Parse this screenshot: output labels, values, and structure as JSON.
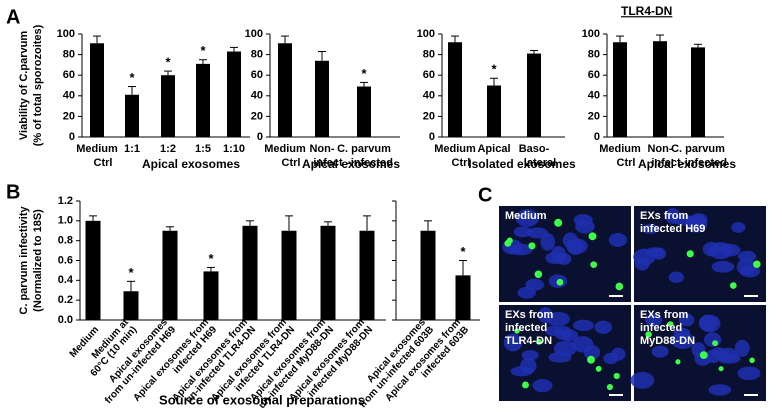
{
  "panel_letters": [
    "A",
    "B",
    "C"
  ],
  "chart_data": [
    {
      "type": "bar",
      "ylabel": [
        "Viability of C.parvum",
        "(% of total sporozoites)"
      ],
      "categories": [
        [
          "Medium",
          "Ctrl"
        ],
        [
          "1:1"
        ],
        [
          "1:2"
        ],
        [
          "1:5"
        ],
        [
          "1:10"
        ]
      ],
      "values": [
        91,
        41,
        60,
        71,
        83
      ],
      "errors": [
        7,
        8,
        4,
        4,
        4
      ],
      "markers": [
        null,
        "*",
        "*",
        "*",
        null
      ],
      "group_label": "Apical exosomes",
      "color": "#000000",
      "ylim": [
        0,
        100
      ],
      "yticks": [
        0,
        20,
        40,
        60,
        80,
        100
      ]
    },
    {
      "type": "bar",
      "categories": [
        [
          "Medium",
          "Ctrl"
        ],
        [
          "Non-",
          "infect"
        ],
        [
          "C. parvum",
          "-infected"
        ]
      ],
      "values": [
        91,
        74,
        49
      ],
      "errors": [
        7,
        9,
        4
      ],
      "markers": [
        null,
        null,
        "*"
      ],
      "group_label": "Apical exosomes",
      "color": "#000000",
      "ylim": [
        0,
        100
      ],
      "yticks": [
        0,
        20,
        40,
        60,
        80,
        100
      ]
    },
    {
      "type": "bar",
      "categories": [
        [
          "Medium",
          "Ctrl"
        ],
        [
          "Apical"
        ],
        [
          "Baso-",
          "lateral"
        ]
      ],
      "values": [
        92,
        50,
        81
      ],
      "errors": [
        6,
        7,
        3
      ],
      "markers": [
        null,
        "*",
        null
      ],
      "group_label": "Isolated exosomes",
      "color": "#000000",
      "ylim": [
        0,
        100
      ],
      "yticks": [
        0,
        20,
        40,
        60,
        80,
        100
      ]
    },
    {
      "type": "bar",
      "title": "TLR4-DN",
      "categories": [
        [
          "Medium",
          "Ctrl"
        ],
        [
          "Non-",
          "infect"
        ],
        [
          "C. parvum",
          "-infected"
        ]
      ],
      "values": [
        92,
        93,
        87
      ],
      "errors": [
        6,
        6,
        3
      ],
      "markers": [
        null,
        null,
        null
      ],
      "group_label": "Apical exosomes",
      "color": "#000000",
      "ylim": [
        0,
        100
      ],
      "yticks": [
        0,
        20,
        40,
        60,
        80,
        100
      ]
    },
    {
      "type": "bar",
      "ylabel": [
        "C. parvum infectivity",
        "(Normalized to 18S)"
      ],
      "xlabel": "Source of exosomal preparations",
      "categories": [
        [
          "Medium"
        ],
        [
          "Medium at",
          "60°C (10 min)"
        ],
        [
          "Apical exosomes",
          "from un-infected H69"
        ],
        [
          "Apical exosomes from",
          "infected H69"
        ],
        [
          "Apical exosomes from",
          "un-infected TLR4-DN"
        ],
        [
          "Apical exosomes from",
          "infected TLR4-DN"
        ],
        [
          "Apical exosomes from",
          "un-infected MyD88-DN"
        ],
        [
          "Apical exosomes from",
          "infected MyD88-DN"
        ],
        [
          "Apical exosomes",
          "from un-infected 603B"
        ],
        [
          "Apical exosomes from",
          "infected 603B"
        ]
      ],
      "values": [
        1.0,
        0.29,
        0.9,
        0.49,
        0.95,
        0.9,
        0.95,
        0.9,
        0.9,
        0.45
      ],
      "errors": [
        0.05,
        0.1,
        0.04,
        0.04,
        0.05,
        0.15,
        0.04,
        0.15,
        0.1,
        0.15
      ],
      "markers": [
        null,
        "*",
        null,
        "*",
        null,
        null,
        null,
        null,
        null,
        "*"
      ],
      "color": "#000000",
      "ylim": [
        0,
        1.2
      ],
      "yticks": [
        {
          "value": 0,
          "label": "0.0"
        },
        0.2,
        0.4,
        0.6,
        0.8,
        {
          "value": 1,
          "label": "1.0"
        },
        1.2
      ]
    }
  ],
  "images": [
    [
      "Medium"
    ],
    [
      "EXs from",
      "infected H69"
    ],
    [
      "EXs from",
      "infected",
      "TLR4-DN"
    ],
    [
      "EXs from",
      "infected",
      "MyD88-DN"
    ]
  ]
}
